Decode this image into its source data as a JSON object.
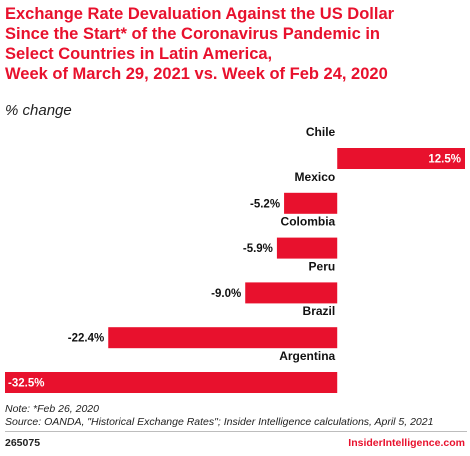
{
  "title": "Exchange Rate Devaluation Against the US Dollar\nSince the Start* of the Coronavirus Pandemic in\nSelect Countries in Latin America,\nWeek of March 29, 2021 vs. Week of Feb 24, 2020",
  "subtitle": "% change",
  "footnote": {
    "note": "Note: *Feb 26, 2020",
    "source": "Source: OANDA, \"Historical Exchange Rates\"; Insider Intelligence calculations, April 5, 2021"
  },
  "footer": {
    "code": "265075",
    "brand": "InsiderIntelligence.com"
  },
  "colors": {
    "bar": "#e8112d",
    "title": "#e8112d"
  },
  "chart_data": {
    "type": "bar",
    "orientation": "horizontal",
    "categories": [
      "Chile",
      "Mexico",
      "Colombia",
      "Peru",
      "Brazil",
      "Argentina"
    ],
    "values": [
      12.5,
      -5.2,
      -5.9,
      -9.0,
      -22.4,
      -32.5
    ],
    "data_labels": [
      "12.5%",
      "-5.2%",
      "-5.9%",
      "-9.0%",
      "-22.4%",
      "-32.5%"
    ],
    "xlim": [
      -32.5,
      12.5
    ],
    "grid": false,
    "legend": "none"
  }
}
